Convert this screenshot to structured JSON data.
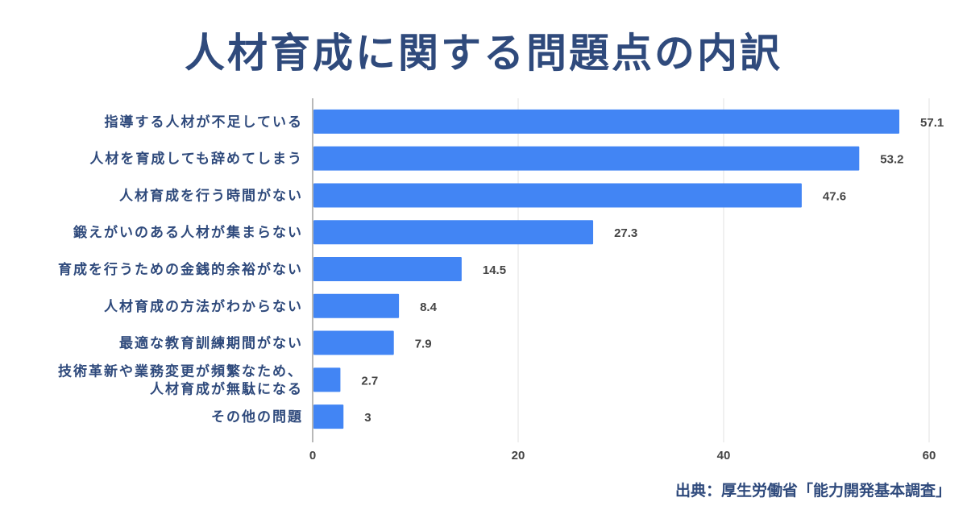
{
  "chart_data": {
    "type": "bar",
    "orientation": "horizontal",
    "title": "人材育成に関する問題点の内訳",
    "categories": [
      [
        "指導する人材が不足している"
      ],
      [
        "人材を育成しても辞めてしまう"
      ],
      [
        "人材育成を行う時間がない"
      ],
      [
        "鍛えがいのある人材が集まらない"
      ],
      [
        "育成を行うための金銭的余裕がない"
      ],
      [
        "人材育成の方法がわからない"
      ],
      [
        "最適な教育訓練期間がない"
      ],
      [
        "技術革新や業務変更が頻繁なため、",
        "人材育成が無駄になる"
      ],
      [
        "その他の問題"
      ]
    ],
    "values": [
      57.1,
      53.2,
      47.6,
      27.3,
      14.5,
      8.4,
      7.9,
      2.7,
      3
    ],
    "value_labels": [
      "57.1",
      "53.2",
      "47.6",
      "27.3",
      "14.5",
      "8.4",
      "7.9",
      "2.7",
      "3"
    ],
    "xlim": [
      0,
      60
    ],
    "xticks": [
      0,
      20,
      40,
      60
    ],
    "xtick_labels": [
      "0",
      "20",
      "40",
      "60"
    ],
    "grid": true,
    "xlabel": "",
    "ylabel": "",
    "bar_color": "#4285f4",
    "title_color": "#2f4a7c",
    "label_color": "#2f4a7c",
    "value_color": "#444444",
    "grid_color": "#e0e0e0",
    "axis_color": "#888888"
  },
  "source": "出典：厚生労働省「能力開発基本調査」"
}
